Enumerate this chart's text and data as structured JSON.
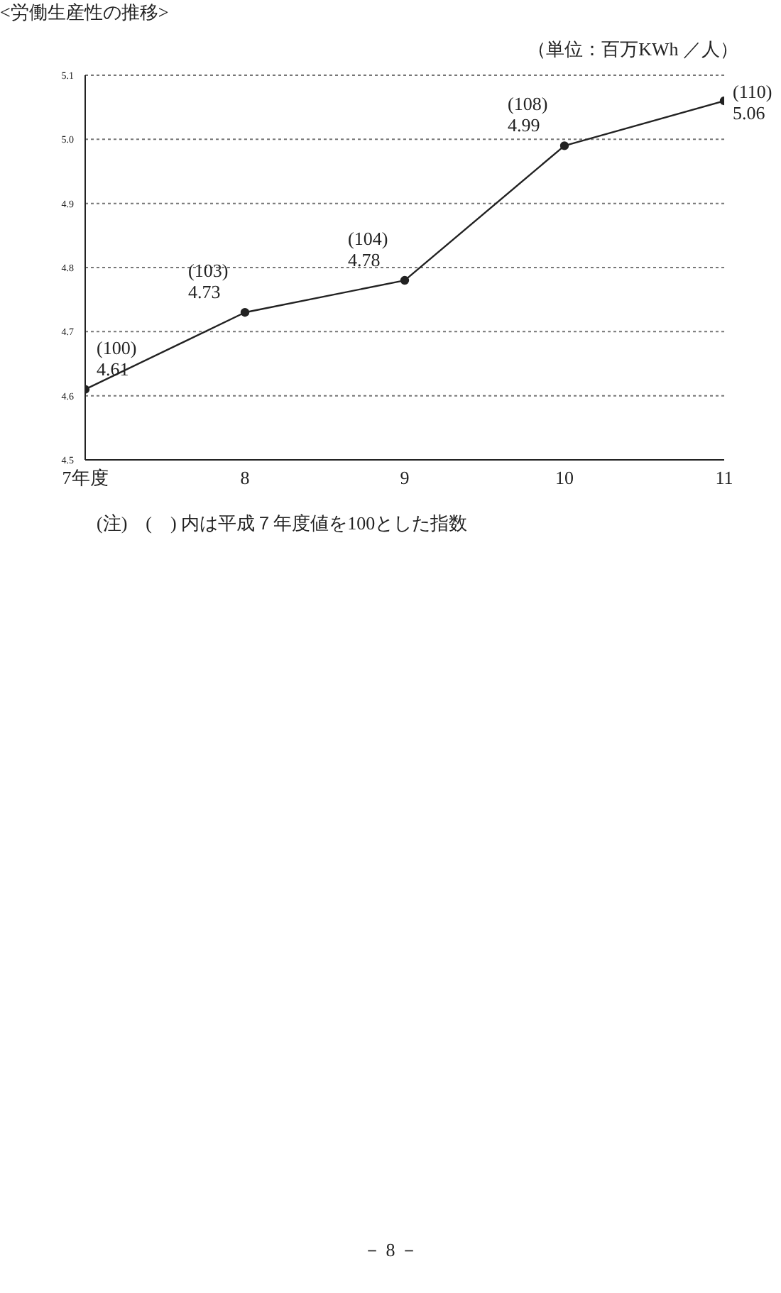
{
  "chart_data": {
    "type": "line",
    "title": "<労働生産性の推移>",
    "ylabel": "（単位：百万KWh ／人）",
    "categories": [
      "7年度",
      "8",
      "9",
      "10",
      "11"
    ],
    "series": [
      {
        "color": "#222222",
        "values": [
          4.61,
          4.73,
          4.78,
          4.99,
          5.06
        ],
        "value_labels": [
          "(100)\n4.61",
          "(103)\n4.73",
          "(104)\n4.78",
          "(108)\n4.99",
          "(110)\n5.06"
        ]
      }
    ],
    "ylim": [
      4.5,
      5.1
    ],
    "yticks": [
      4.5,
      4.6,
      4.7,
      4.8,
      4.9,
      {
        "value": 5,
        "label": "5.0"
      },
      5.1
    ],
    "grid": "y",
    "legend": false,
    "marker": "circle",
    "line_style": "solid",
    "annotations": [
      "(注)　(　) 内は平成７年度値を100とした指数",
      "－ 8 －"
    ]
  }
}
